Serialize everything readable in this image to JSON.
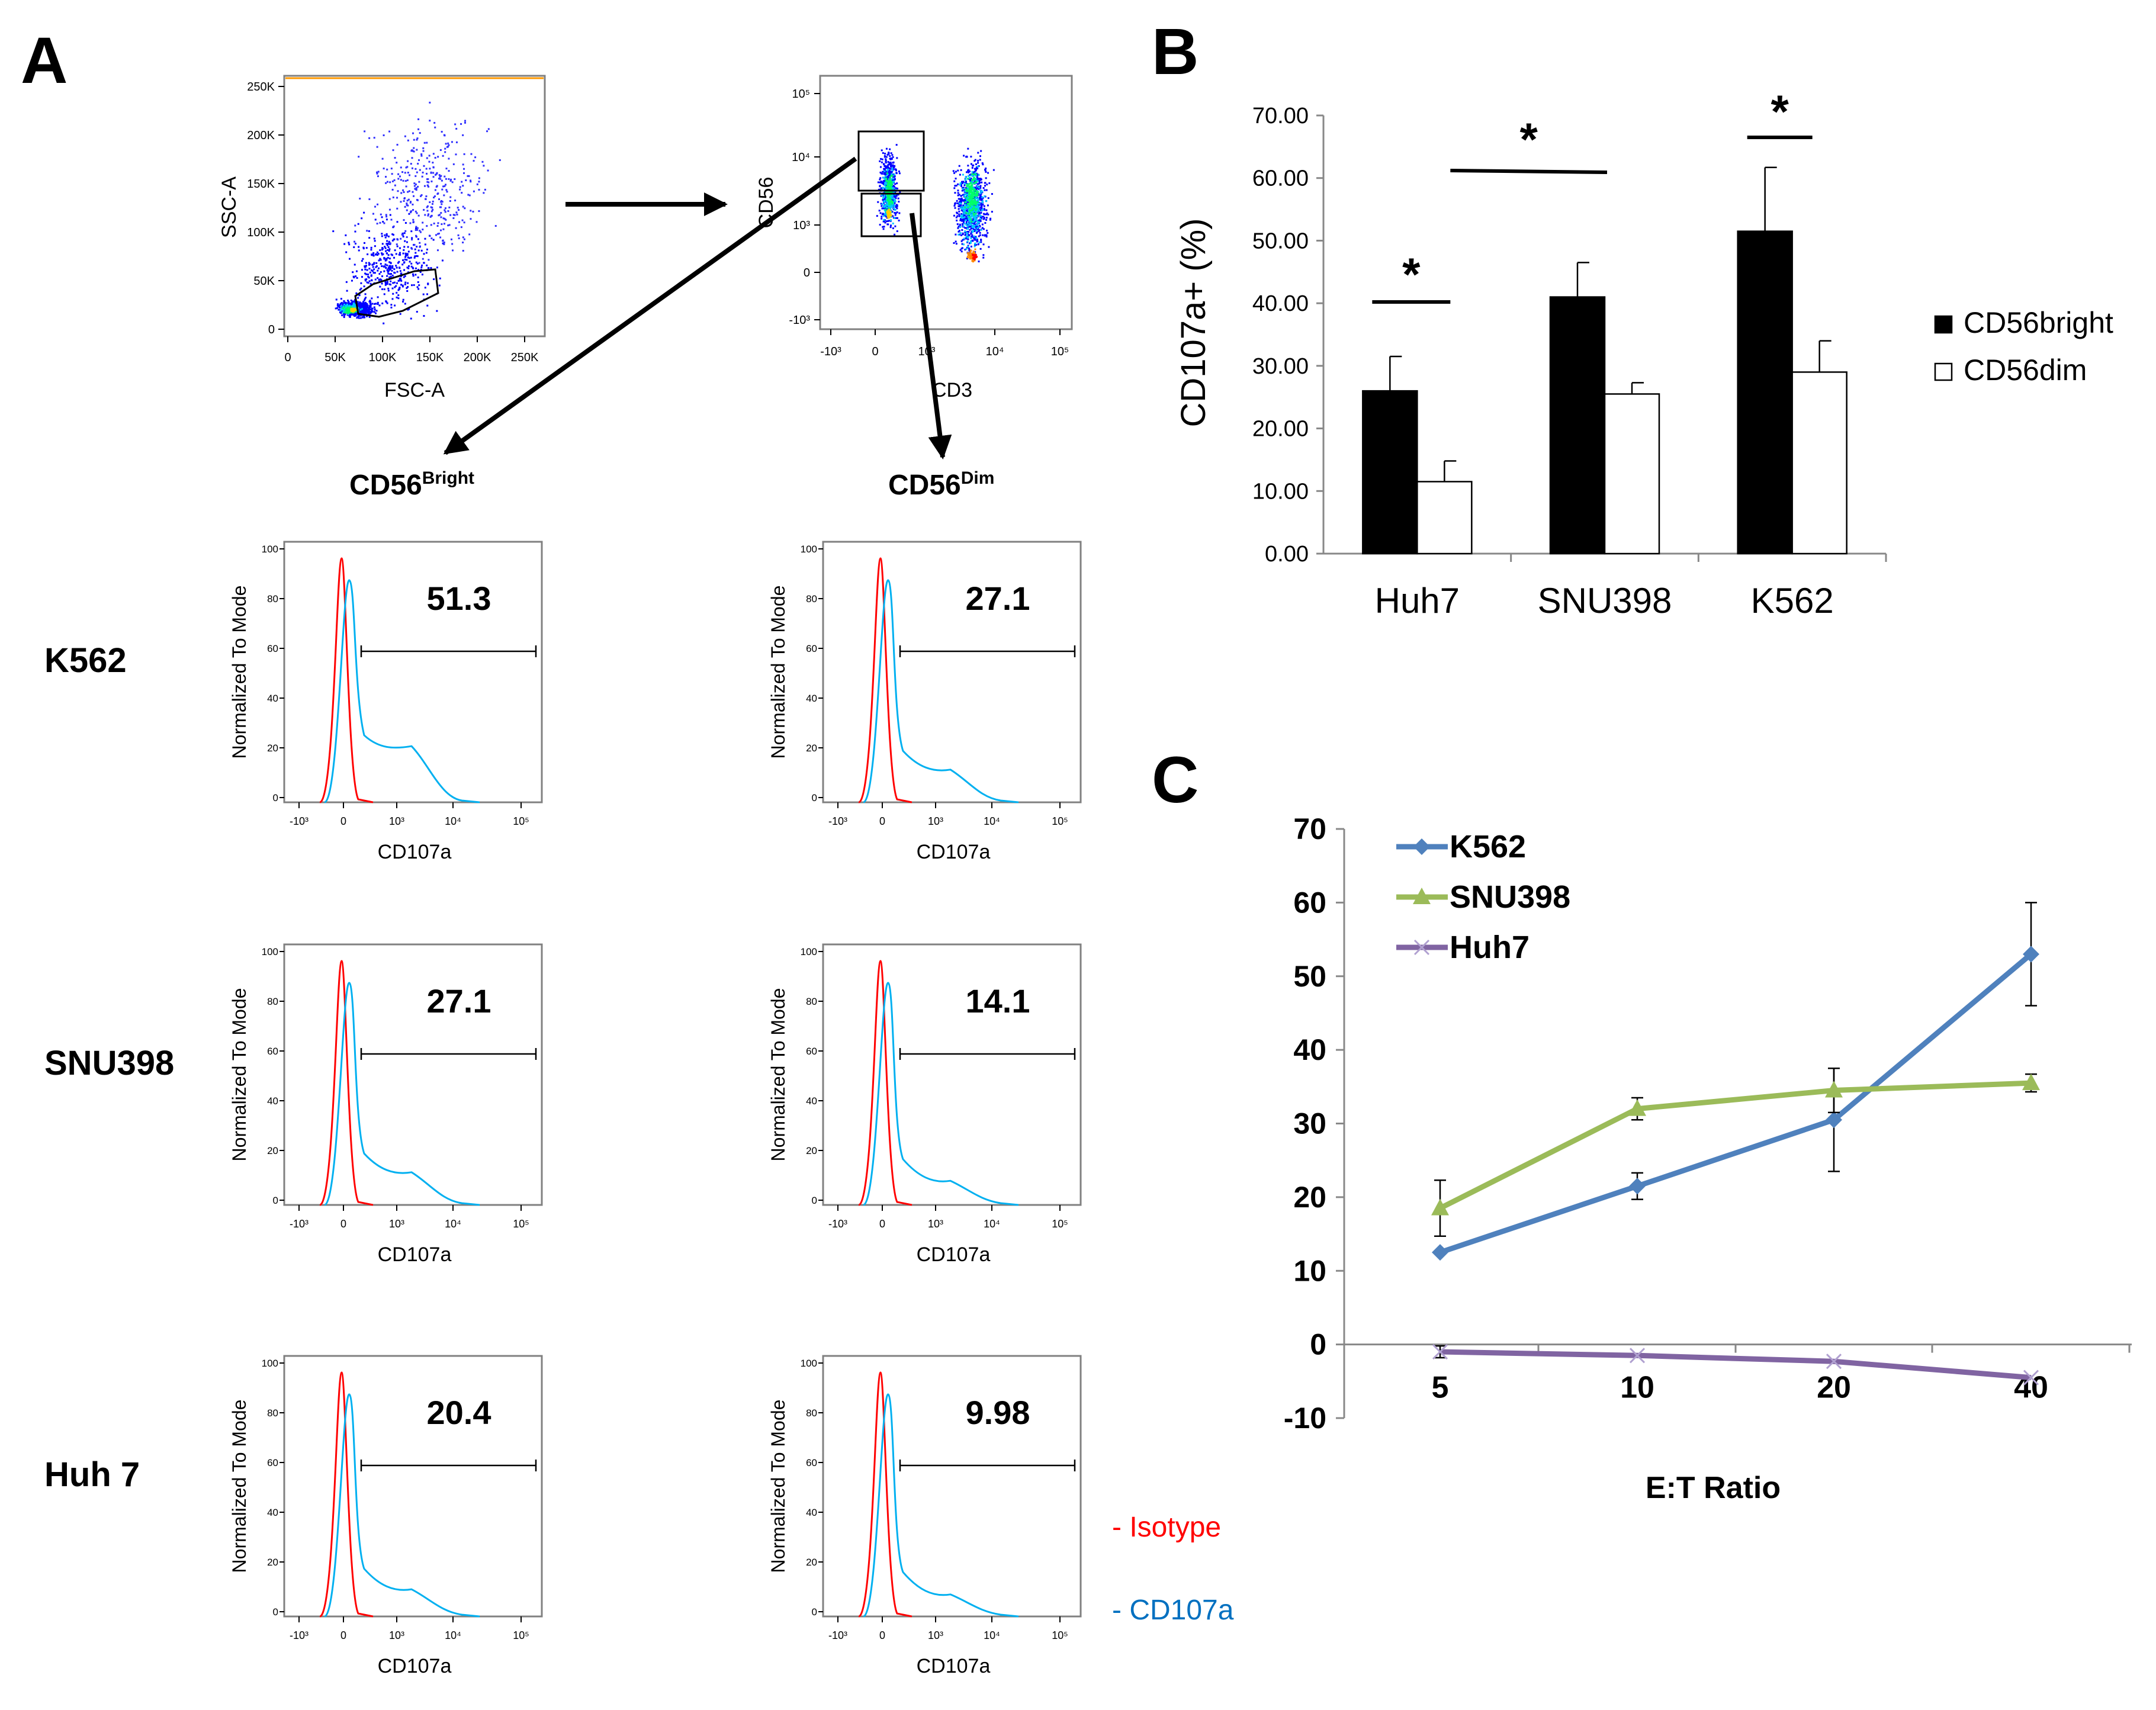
{
  "panels": {
    "a": {
      "letter": "A"
    },
    "b": {
      "letter": "B"
    },
    "c": {
      "letter": "C"
    }
  },
  "colors": {
    "isotype": "#ff0000",
    "cd107a": "#00b0f0",
    "k562": "#4f81bd",
    "snu398": "#9bbb59",
    "huh7": "#8064a2",
    "bar_bright": "#000000",
    "bar_dim": "#ffffff"
  },
  "panel_a": {
    "scatter1": {
      "xlabel": "FSC-A",
      "ylabel": "SSC-A",
      "xticks": [
        "0",
        "50K",
        "100K",
        "150K",
        "200K",
        "250K"
      ],
      "yticks": [
        "0",
        "50K",
        "100K",
        "150K",
        "200K",
        "250K"
      ]
    },
    "scatter2": {
      "xlabel": "CD3",
      "ylabel": "CD56",
      "xticks": [
        "-10³",
        "0",
        "10³",
        "10⁴",
        "10⁵"
      ],
      "yticks": [
        "-10³",
        "0",
        "10³",
        "10⁴",
        "10⁵"
      ]
    },
    "cd56_bright": {
      "base": "CD56",
      "sup": "Bright"
    },
    "cd56_dim": {
      "base": "CD56",
      "sup": "Dim"
    },
    "hist_ylabel": "Normalized To Mode",
    "hist_xlabel": "CD107a",
    "hist_yticks": [
      "0",
      "20",
      "40",
      "60",
      "80",
      "100"
    ],
    "hist_xticks": [
      "-10³",
      "0",
      "10³",
      "10⁴",
      "10⁵"
    ],
    "rows": [
      {
        "label": "K562",
        "bright_value": "51.3",
        "dim_value": "27.1",
        "bright_tail": 0.9,
        "dim_tail": 0.35
      },
      {
        "label": "SNU398",
        "bright_value": "27.1",
        "dim_value": "14.1",
        "bright_tail": 0.35,
        "dim_tail": 0.15
      },
      {
        "label": "Huh 7",
        "bright_value": "20.4",
        "dim_value": "9.98",
        "bright_tail": 0.22,
        "dim_tail": 0.1
      }
    ],
    "legend": {
      "isotype": "- Isotype",
      "cd107a": "- CD107a"
    }
  },
  "chart_data": [
    {
      "type": "bar",
      "panel": "B",
      "categories": [
        "Huh7",
        "SNU398",
        "K562"
      ],
      "series": [
        {
          "name": "CD56bright",
          "values": [
            26.0,
            41.0,
            51.5
          ],
          "errors": [
            5.5,
            5.5,
            10.2
          ]
        },
        {
          "name": "CD56dim",
          "values": [
            11.5,
            25.5,
            29.0
          ],
          "errors": [
            3.3,
            1.8,
            5.0
          ]
        }
      ],
      "ylabel": "CD107a+ (%)",
      "ylim": [
        0,
        70
      ],
      "yticks": [
        "0.00",
        "10.00",
        "20.00",
        "30.00",
        "40.00",
        "50.00",
        "60.00",
        "70.00"
      ],
      "significance": [
        {
          "label": "*",
          "from": "Huh7 CD56bright",
          "to": "Huh7 CD56dim"
        },
        {
          "label": "*",
          "from": "Huh7 CD56bright",
          "to": "SNU398 CD56bright"
        },
        {
          "label": "*",
          "from": "K562 CD56bright",
          "to": "K562 CD56dim"
        }
      ],
      "legend_position": "right"
    },
    {
      "type": "line",
      "panel": "C",
      "x": [
        "5",
        "10",
        "20",
        "40"
      ],
      "series": [
        {
          "name": "K562",
          "values": [
            12.5,
            21.5,
            30.5,
            53.0
          ],
          "errors": [
            0,
            1.8,
            7.0,
            7.0
          ],
          "marker": "diamond"
        },
        {
          "name": "SNU398",
          "values": [
            18.5,
            32.0,
            34.5,
            35.5
          ],
          "errors": [
            3.8,
            1.5,
            3.0,
            1.2
          ],
          "marker": "triangle"
        },
        {
          "name": "Huh7",
          "values": [
            -1.0,
            -1.5,
            -2.3,
            -4.5
          ],
          "errors": [
            0.8,
            0,
            0,
            0
          ],
          "marker": "x"
        }
      ],
      "xlabel": "E:T Ratio",
      "ylabel": "",
      "ylim": [
        -10,
        70
      ],
      "yticks": [
        "-10",
        "0",
        "10",
        "20",
        "30",
        "40",
        "50",
        "60",
        "70"
      ],
      "legend_position": "top-left"
    }
  ]
}
